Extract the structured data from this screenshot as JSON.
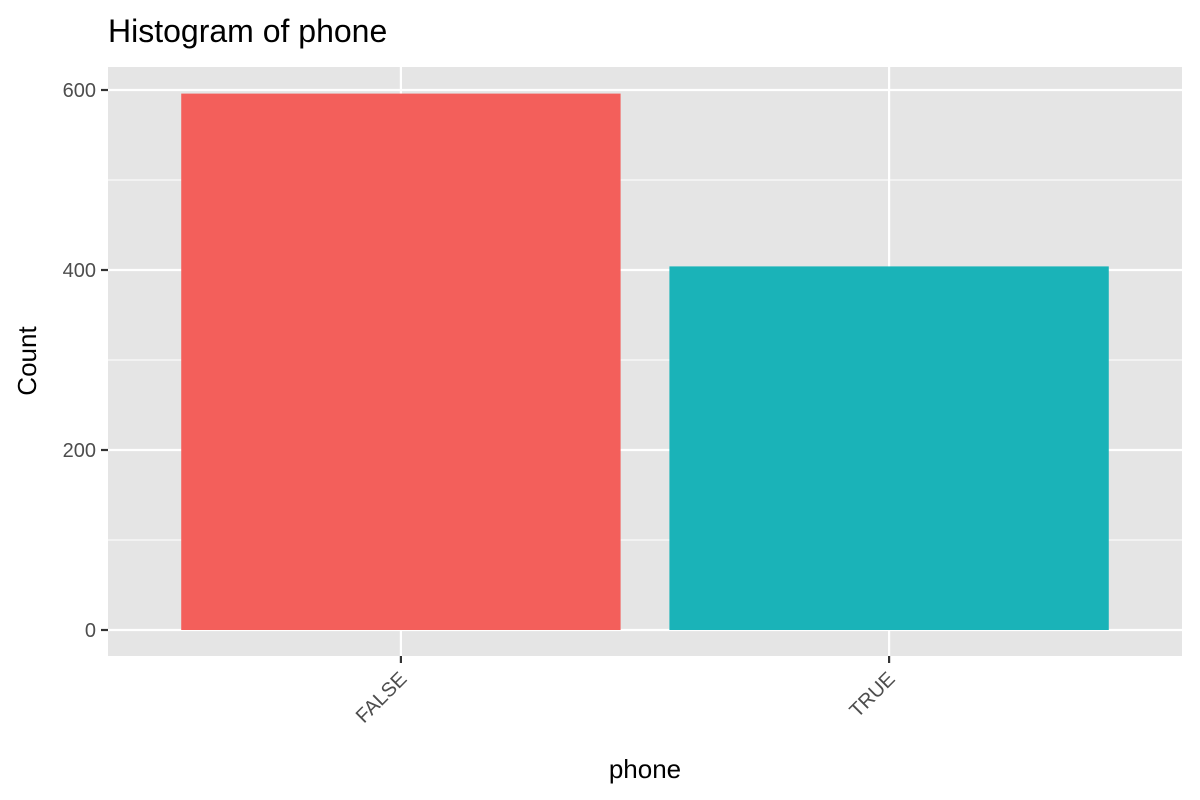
{
  "chart_data": {
    "type": "bar",
    "title": "Histogram of phone",
    "xlabel": "phone",
    "ylabel": "Count",
    "categories": [
      "FALSE",
      "TRUE"
    ],
    "values": [
      596,
      404
    ],
    "colors": [
      "#F35F5B",
      "#1AB3B8"
    ],
    "ylim": [
      0,
      600
    ],
    "yticks": [
      0,
      200,
      400,
      600
    ],
    "ytick_labels": [
      "0",
      "200",
      "400",
      "600"
    ],
    "grid": true,
    "legend": "none",
    "xtick_rotation_deg": 45
  }
}
